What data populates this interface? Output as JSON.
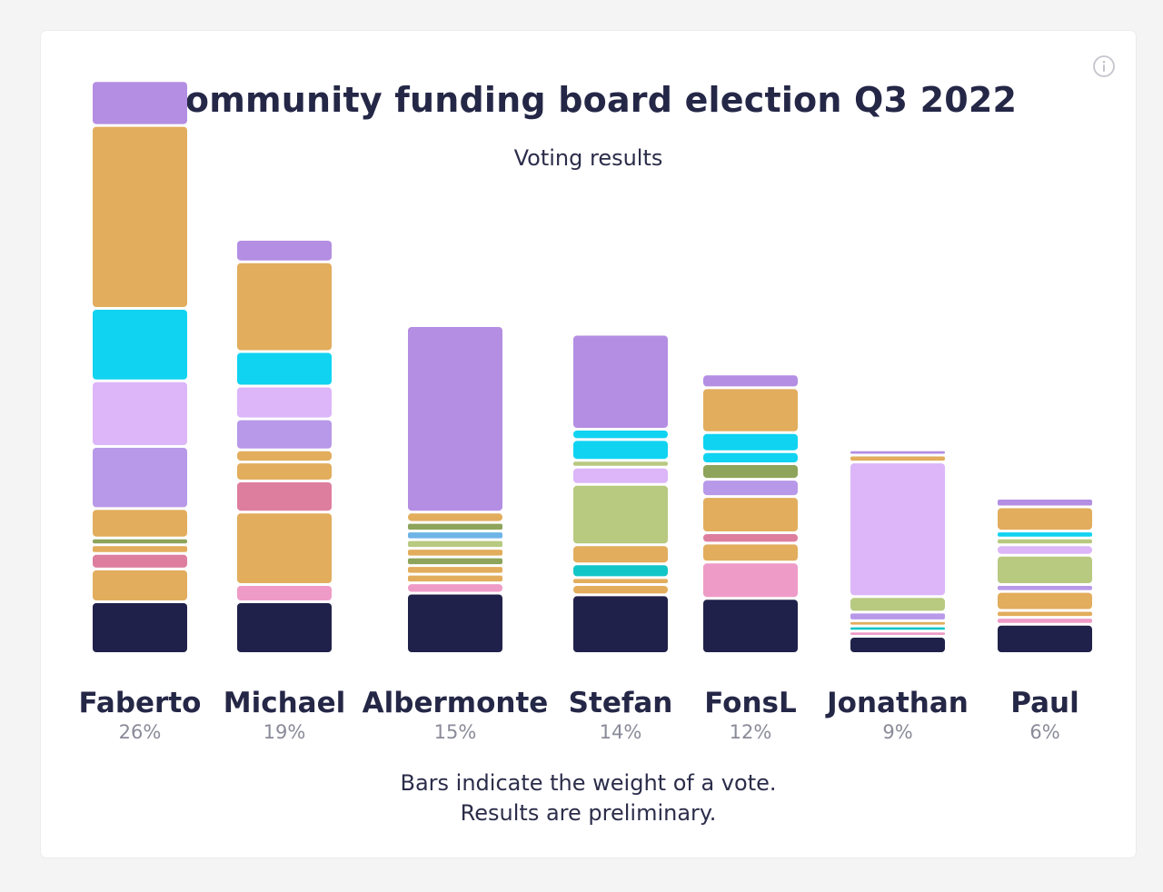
{
  "title": "Community funding board election Q3 2022",
  "subtitle": "Voting results",
  "footnote": [
    "Bars indicate the weight of a vote.",
    "Results are preliminary."
  ],
  "info_icon": "info-icon",
  "colors": {
    "text_dark": "#252747",
    "text_muted": "#8a8b99",
    "purple": "#b38ee3",
    "orange": "#e2ad5d",
    "cyan": "#10d3f1",
    "lavender": "#dcb6f8",
    "violet": "#b898e8",
    "olive": "#8da45a",
    "pink": "#de7e9f",
    "rose": "#ee9bc7",
    "green": "#b8c980",
    "teal": "#12c6c8",
    "blue": "#6fb4e6",
    "navy": "#20214a"
  },
  "chart_data": {
    "type": "bar",
    "stacked": true,
    "title": "Community funding board election Q3 2022",
    "subtitle": "Voting results",
    "unit": "%",
    "categories": [
      "Faberto",
      "Michael",
      "Albermonte",
      "Stefan",
      "FonsL",
      "Jonathan",
      "Paul"
    ],
    "values": [
      26,
      19,
      15,
      14,
      12,
      9,
      6
    ],
    "value_labels": [
      "26%",
      "19%",
      "15%",
      "14%",
      "12%",
      "9%",
      "6%"
    ],
    "note": "Bars indicate the weight of a vote.",
    "bars": [
      {
        "name": "Faberto",
        "segments": [
          {
            "w": 3.0,
            "c": "navy"
          },
          {
            "w": 1.9,
            "c": "orange"
          },
          {
            "w": 0.9,
            "c": "pink"
          },
          {
            "w": 0.5,
            "c": "orange"
          },
          {
            "w": 0.4,
            "c": "olive"
          },
          {
            "w": 1.7,
            "c": "orange"
          },
          {
            "w": 3.6,
            "c": "violet"
          },
          {
            "w": 3.8,
            "c": "lavender"
          },
          {
            "w": 4.2,
            "c": "cyan"
          },
          {
            "w": 10.6,
            "c": "orange"
          },
          {
            "w": 2.6,
            "c": "purple"
          }
        ]
      },
      {
        "name": "Michael",
        "segments": [
          {
            "w": 3.0,
            "c": "navy"
          },
          {
            "w": 1.0,
            "c": "rose"
          },
          {
            "w": 4.2,
            "c": "orange"
          },
          {
            "w": 1.8,
            "c": "pink"
          },
          {
            "w": 1.1,
            "c": "orange"
          },
          {
            "w": 0.7,
            "c": "orange"
          },
          {
            "w": 1.8,
            "c": "violet"
          },
          {
            "w": 1.9,
            "c": "lavender"
          },
          {
            "w": 2.0,
            "c": "cyan"
          },
          {
            "w": 5.2,
            "c": "orange"
          },
          {
            "w": 1.3,
            "c": "purple"
          }
        ]
      },
      {
        "name": "Albermonte",
        "segments": [
          {
            "w": 3.5,
            "c": "navy"
          },
          {
            "w": 0.6,
            "c": "rose"
          },
          {
            "w": 0.5,
            "c": "orange"
          },
          {
            "w": 0.5,
            "c": "orange"
          },
          {
            "w": 0.5,
            "c": "olive"
          },
          {
            "w": 0.5,
            "c": "orange"
          },
          {
            "w": 0.5,
            "c": "green"
          },
          {
            "w": 0.5,
            "c": "blue"
          },
          {
            "w": 0.5,
            "c": "olive"
          },
          {
            "w": 0.6,
            "c": "orange"
          },
          {
            "w": 10.8,
            "c": "purple"
          }
        ]
      },
      {
        "name": "Stefan",
        "segments": [
          {
            "w": 3.4,
            "c": "navy"
          },
          {
            "w": 0.6,
            "c": "orange"
          },
          {
            "w": 0.4,
            "c": "orange"
          },
          {
            "w": 0.8,
            "c": "teal"
          },
          {
            "w": 1.1,
            "c": "orange"
          },
          {
            "w": 3.5,
            "c": "green"
          },
          {
            "w": 1.0,
            "c": "lavender"
          },
          {
            "w": 0.4,
            "c": "green"
          },
          {
            "w": 1.2,
            "c": "cyan"
          },
          {
            "w": 0.6,
            "c": "cyan"
          },
          {
            "w": 5.5,
            "c": "purple"
          }
        ]
      },
      {
        "name": "FonsL",
        "segments": [
          {
            "w": 3.2,
            "c": "navy"
          },
          {
            "w": 2.1,
            "c": "rose"
          },
          {
            "w": 1.1,
            "c": "orange"
          },
          {
            "w": 0.6,
            "c": "pink"
          },
          {
            "w": 2.1,
            "c": "orange"
          },
          {
            "w": 1.0,
            "c": "violet"
          },
          {
            "w": 0.9,
            "c": "olive"
          },
          {
            "w": 0.7,
            "c": "cyan"
          },
          {
            "w": 1.1,
            "c": "cyan"
          },
          {
            "w": 2.6,
            "c": "orange"
          },
          {
            "w": 0.8,
            "c": "purple"
          }
        ]
      },
      {
        "name": "Jonathan",
        "segments": [
          {
            "w": 1.0,
            "c": "navy"
          },
          {
            "w": 0.3,
            "c": "rose"
          },
          {
            "w": 0.3,
            "c": "teal"
          },
          {
            "w": 0.3,
            "c": "orange"
          },
          {
            "w": 0.5,
            "c": "violet"
          },
          {
            "w": 0.9,
            "c": "green"
          },
          {
            "w": 7.8,
            "c": "lavender"
          },
          {
            "w": 0.4,
            "c": "orange"
          },
          {
            "w": 0.3,
            "c": "purple"
          }
        ]
      },
      {
        "name": "Paul",
        "segments": [
          {
            "w": 1.7,
            "c": "navy"
          },
          {
            "w": 0.4,
            "c": "rose"
          },
          {
            "w": 0.4,
            "c": "orange"
          },
          {
            "w": 1.1,
            "c": "orange"
          },
          {
            "w": 0.4,
            "c": "violet"
          },
          {
            "w": 1.7,
            "c": "green"
          },
          {
            "w": 0.6,
            "c": "lavender"
          },
          {
            "w": 0.4,
            "c": "green"
          },
          {
            "w": 0.4,
            "c": "cyan"
          },
          {
            "w": 1.4,
            "c": "orange"
          },
          {
            "w": 0.5,
            "c": "purple"
          }
        ]
      }
    ]
  }
}
